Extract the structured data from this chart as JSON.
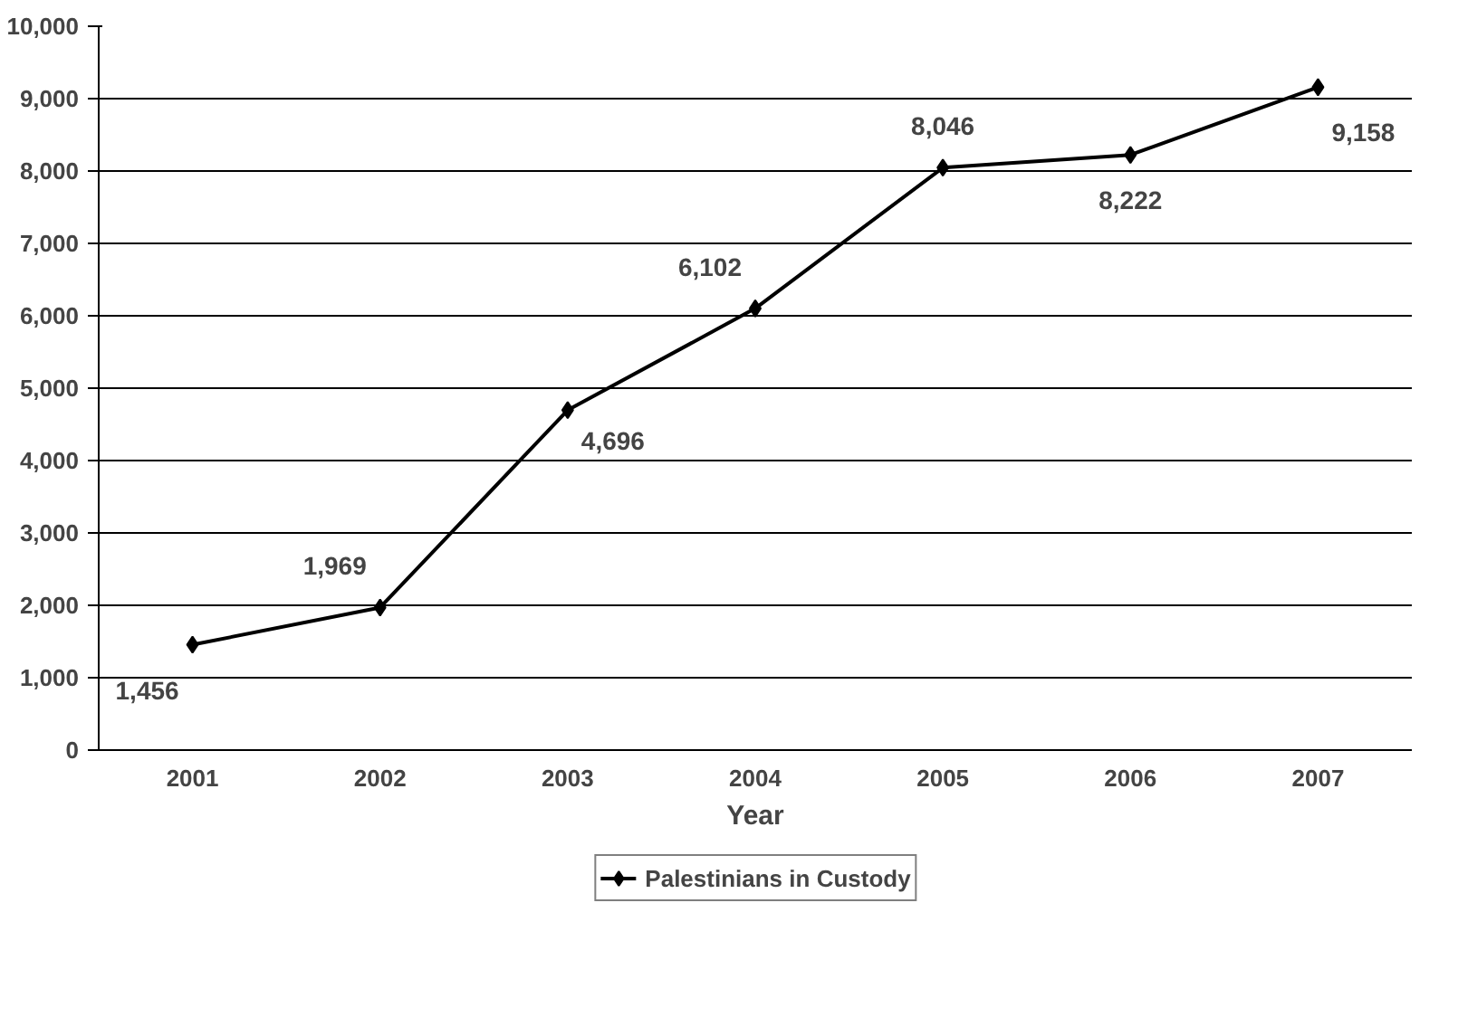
{
  "chart_data": {
    "type": "line",
    "xlabel": "Year",
    "categories": [
      "2001",
      "2002",
      "2003",
      "2004",
      "2005",
      "2006",
      "2007"
    ],
    "series": [
      {
        "name": "Palestinians in Custody",
        "color": "#000000",
        "values": [
          1456,
          1969,
          4696,
          6102,
          8046,
          8222,
          9158
        ],
        "value_labels": [
          "1,456",
          "1,969",
          "4,696",
          "6,102",
          "8,046",
          "8,222",
          "9,158"
        ]
      }
    ],
    "ylim": [
      0,
      10000
    ],
    "yticks": [
      {
        "value": 0,
        "label": "0"
      },
      {
        "value": 1000,
        "label": "1,000"
      },
      {
        "value": 2000,
        "label": "2,000"
      },
      {
        "value": 3000,
        "label": "3,000"
      },
      {
        "value": 4000,
        "label": "4,000"
      },
      {
        "value": 5000,
        "label": "5,000"
      },
      {
        "value": 6000,
        "label": "6,000"
      },
      {
        "value": 7000,
        "label": "7,000"
      },
      {
        "value": 8000,
        "label": "8,000"
      },
      {
        "value": 9000,
        "label": "9,000"
      },
      {
        "value": 10000,
        "label": "10,000"
      }
    ],
    "grid": "y",
    "legend": "bottom",
    "marker": "diamond",
    "line_style": "solid"
  }
}
